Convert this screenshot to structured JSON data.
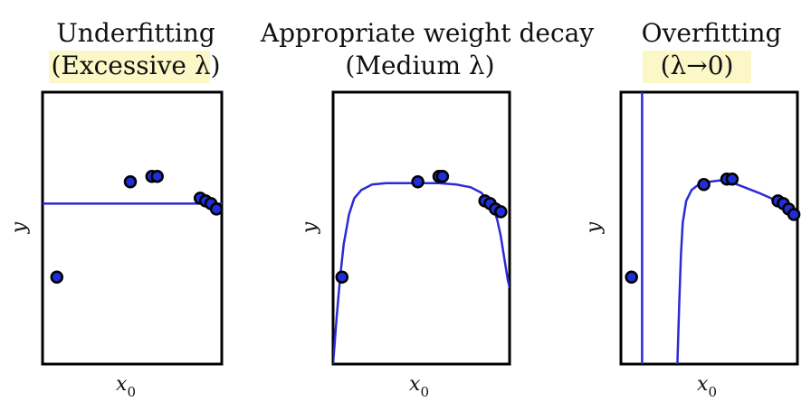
{
  "colors": {
    "curve": "#2a2ad6",
    "point_fill": "#1f2fd6",
    "point_stroke": "#000000",
    "frame": "#000000",
    "title_highlight": "#fbf7c7"
  },
  "chart_data": [
    {
      "type": "scatter",
      "title": "Underfitting",
      "subtitle": "(Excessive λ)",
      "xlabel": "x",
      "xlabel_sub": "0",
      "ylabel": "y",
      "xlim": [
        0,
        1
      ],
      "ylim": [
        0,
        1
      ],
      "grid": false,
      "points": {
        "x": [
          0.08,
          0.49,
          0.61,
          0.64,
          0.88,
          0.91,
          0.94,
          0.97
        ],
        "y": [
          0.32,
          0.67,
          0.69,
          0.69,
          0.61,
          0.6,
          0.59,
          0.57
        ]
      },
      "fit_curve": {
        "x": [
          0,
          1
        ],
        "y": [
          0.59,
          0.59
        ]
      }
    },
    {
      "type": "scatter",
      "title": "Appropriate weight decay",
      "subtitle": "(Medium λ)",
      "xlabel": "x",
      "xlabel_sub": "0",
      "ylabel": "y",
      "xlim": [
        0,
        1
      ],
      "ylim": [
        0,
        1
      ],
      "grid": false,
      "points": {
        "x": [
          0.05,
          0.48,
          0.6,
          0.62,
          0.86,
          0.89,
          0.92,
          0.95
        ],
        "y": [
          0.32,
          0.67,
          0.69,
          0.69,
          0.6,
          0.59,
          0.57,
          0.56
        ]
      },
      "fit_curve": {
        "x": [
          0.0,
          0.02,
          0.04,
          0.06,
          0.09,
          0.12,
          0.16,
          0.22,
          0.3,
          0.4,
          0.5,
          0.6,
          0.7,
          0.78,
          0.84,
          0.88,
          0.91,
          0.93,
          0.95,
          0.97,
          0.99,
          1.0
        ],
        "y": [
          0.0,
          0.17,
          0.32,
          0.44,
          0.55,
          0.61,
          0.64,
          0.66,
          0.665,
          0.665,
          0.665,
          0.665,
          0.66,
          0.65,
          0.63,
          0.6,
          0.57,
          0.53,
          0.47,
          0.39,
          0.31,
          0.28
        ]
      }
    },
    {
      "type": "scatter",
      "title": "Overfitting",
      "subtitle": "(λ→0)",
      "xlabel": "x",
      "xlabel_sub": "0",
      "ylabel": "y",
      "xlim": [
        0,
        1
      ],
      "ylim": [
        0,
        1
      ],
      "grid": false,
      "points": {
        "x": [
          0.06,
          0.47,
          0.6,
          0.63,
          0.89,
          0.92,
          0.95,
          0.98
        ],
        "y": [
          0.32,
          0.66,
          0.68,
          0.68,
          0.6,
          0.59,
          0.57,
          0.55
        ]
      },
      "fit_curve_left": {
        "x": [
          0.12,
          0.12
        ],
        "y": [
          0.0,
          1.0
        ]
      },
      "fit_curve": {
        "x": [
          0.32,
          0.33,
          0.34,
          0.35,
          0.37,
          0.4,
          0.44,
          0.5,
          0.56,
          0.62,
          0.7,
          0.78,
          0.85,
          0.9,
          0.95,
          1.0
        ],
        "y": [
          0.0,
          0.22,
          0.4,
          0.52,
          0.6,
          0.64,
          0.66,
          0.67,
          0.675,
          0.67,
          0.65,
          0.63,
          0.61,
          0.59,
          0.57,
          0.55
        ]
      }
    }
  ]
}
